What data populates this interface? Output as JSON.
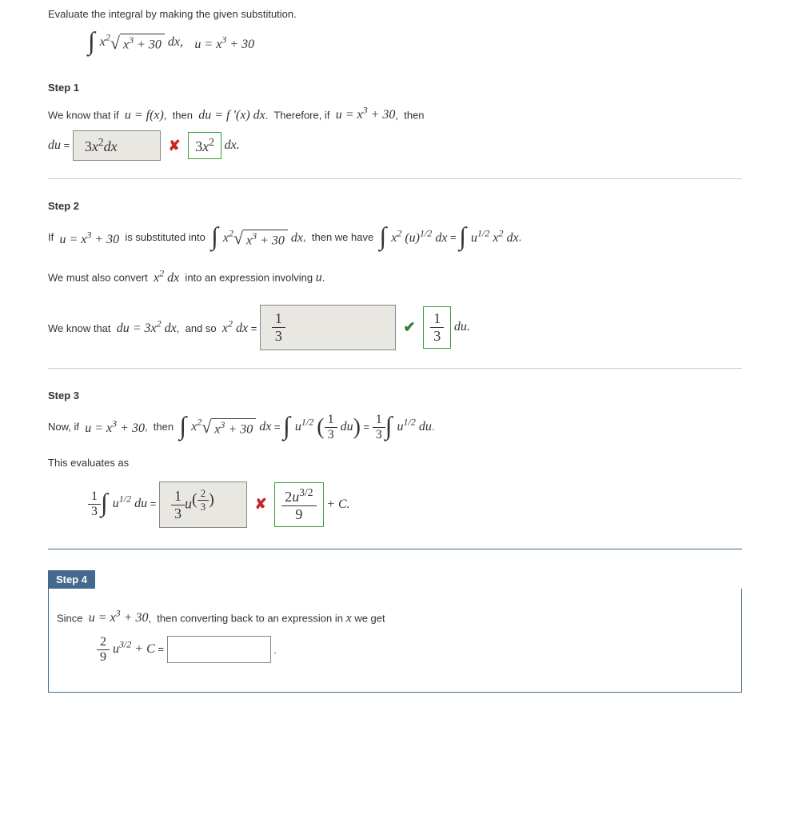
{
  "colors": {
    "text": "#333333",
    "wrong_mark": "#c62828",
    "ok_mark": "#2e7d32",
    "correct_border": "#3a9e3a",
    "answer_bg": "#e9e7e2",
    "answer_border": "#888888",
    "step4_bg": "#45688f",
    "sep": "#cccccc"
  },
  "prompt": "Evaluate the integral by making the given substitution.",
  "problem": {
    "integrand_html": "<span class='int'>∫</span> x<sup>2</sup><span class='sqrt'><span class='rad'>√</span><span class='body'>x<sup>3</sup> + 30</span></span> <i>dx</i>,",
    "sub_html": "u = x<sup>3</sup> + 30"
  },
  "step1": {
    "label": "Step 1",
    "row1_html": "We know that if&nbsp; <span class='math'>u = f(x)</span>,&nbsp; then&nbsp; <span class='math'>du = f '(x) dx</span>.&nbsp; Therefore, if&nbsp; <span class='math'>u = x<sup>3</sup> + 30</span>,&nbsp; then",
    "du_prefix_html": "<span class='math'>du</span> =",
    "du_answer_html": "3<i>x</i><sup>2</sup><i>dx</i>",
    "du_correct_html": "3<i>x</i><sup>2</sup>",
    "du_suffix_html": "<span class='math'>dx.</span>"
  },
  "step2": {
    "label": "Step 2",
    "row1_html": "If&nbsp; <span class='math'>u = x<sup>3</sup> + 30</span>&nbsp; is substituted into&nbsp; <span class='math'><span class='int'>∫</span> x<sup>2</sup><span class='sqrt'><span class='rad'>√</span><span class='body'>x<sup>3</sup> + 30</span></span> dx</span>,&nbsp; then we have&nbsp; <span class='math'><span class='int'>∫</span> x<sup>2</sup> (u)<sup>1/2</sup> dx</span> = <span class='math'><span class='int'>∫</span> u<sup>1/2</sup> x<sup>2</sup> dx</span>.",
    "row2_html": "We must also convert&nbsp; <span class='math'>x<sup>2</sup> dx</span>&nbsp; into an expression involving <span class='math'>u</span>.",
    "row3_pre_html": "We know that&nbsp; <span class='math'>du = 3x<sup>2</sup> dx</span>,&nbsp; and so&nbsp; <span class='math'>x<sup>2</sup> dx</span> =",
    "row3_answer_html": "<span class='frac'><span class='num'>1</span><span class='den'>3</span></span>",
    "row3_correct_html": "<span class='frac'><span class='num'>1</span><span class='den'>3</span></span>",
    "row3_post_html": "<span class='math'>du.</span>"
  },
  "step3": {
    "label": "Step 3",
    "row1_html": "Now, if&nbsp; <span class='math'>u = x<sup>3</sup> + 30</span>,&nbsp; then&nbsp; <span class='math'><span class='int'>∫</span> x<sup>2</sup><span class='sqrt'><span class='rad'>√</span><span class='body'>x<sup>3</sup> + 30</span></span> dx</span> = <span class='math'><span class='int'>∫</span> u<sup>1/2</sup> <span class='paren-big'>(</span><span class='frac'><span class='num'>1</span><span class='den'>3</span></span> du<span class='paren-big'>)</span></span> = <span class='math'><span class='frac'><span class='num'>1</span><span class='den'>3</span></span><span class='int'>∫</span> u<sup>1/2</sup> du</span>.",
    "row2_html": "This evaluates as",
    "row3_pre_html": "<span class='math'><span class='frac'><span class='num'>1</span><span class='den'>3</span></span><span class='int'>∫</span> u<sup>1/2</sup> du</span> =",
    "row3_answer_html": "<span class='frac'><span class='num'>1</span><span class='den'>3</span></span><i>u</i><sup><span class='paren-big' style='font-size:20px;'>(</span><span class='frac' style='font-size:13px;'><span class='num'>2</span><span class='den'>3</span></span><span class='paren-big' style='font-size:20px;'>)</span></sup>",
    "row3_correct_html": "<span class='frac'><span class='num'>2<i>u</i><sup>3/2</sup></span><span class='den'>9</span></span>",
    "row3_post_html": "+ C."
  },
  "step4": {
    "label": "Step 4",
    "row1_html": "Since&nbsp; <span class='math'>u = x<sup>3</sup> + 30</span>,&nbsp; then converting back to an expression in <span class='math'>x</span> we get",
    "row2_pre_html": "<span class='math'><span class='frac'><span class='num'>2</span><span class='den'>9</span></span> u<sup>3/2</sup> + C</span> =",
    "row2_answer_html": "",
    "row2_post": "."
  }
}
